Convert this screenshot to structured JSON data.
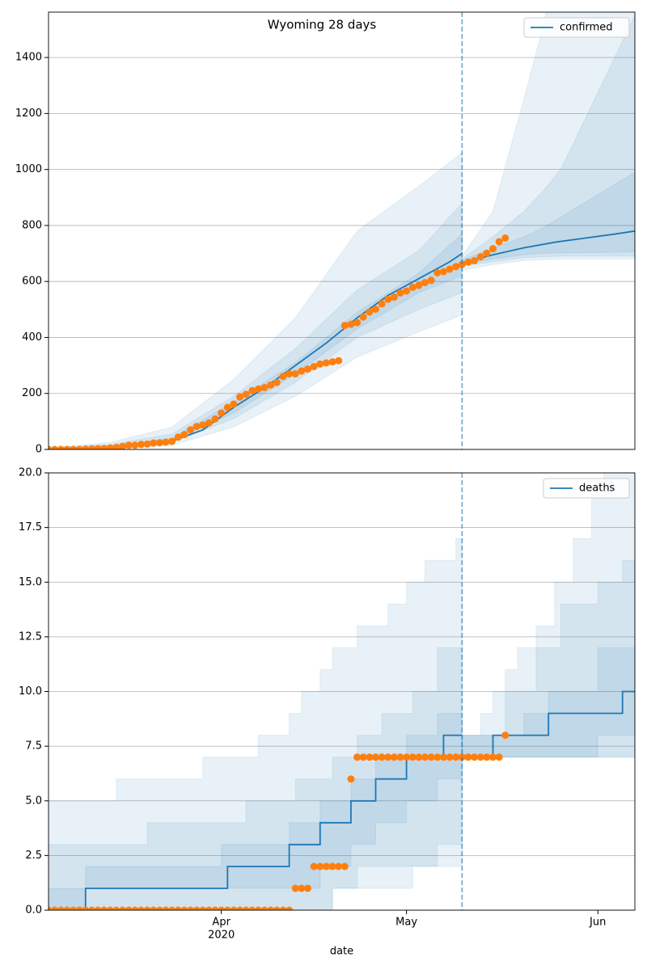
{
  "chart_data": [
    {
      "type": "line",
      "title": "Wyoming 28 days",
      "xlim": [
        "2020-03-04",
        "2020-06-07"
      ],
      "ylim": [
        0,
        1562
      ],
      "yticks": [
        0,
        200,
        400,
        600,
        800,
        1000,
        1200,
        1400
      ],
      "grid": true,
      "legend": "upper right",
      "vline": "2020-05-10",
      "band_color": "#1f77b4",
      "band_alpha": 0.1,
      "bands": [
        {
          "x": [
            "2020-03-04",
            "2020-03-14",
            "2020-03-24",
            "2020-04-03",
            "2020-04-13",
            "2020-04-23",
            "2020-05-03",
            "2020-05-10",
            null,
            "2020-05-10",
            "2020-05-15",
            "2020-05-20",
            "2020-05-23",
            "2020-05-26",
            "2020-06-07"
          ],
          "upper": [
            5,
            25,
            80,
            250,
            470,
            780,
            940,
            1060,
            null,
            690,
            850,
            1250,
            1500,
            1800,
            2200
          ],
          "lower": [
            0,
            0,
            15,
            80,
            190,
            330,
            420,
            480,
            null,
            640,
            660,
            675,
            678,
            680,
            680
          ]
        },
        {
          "x": [
            "2020-03-04",
            "2020-03-14",
            "2020-03-24",
            "2020-04-03",
            "2020-04-13",
            "2020-04-23",
            "2020-05-03",
            "2020-05-10",
            null,
            "2020-05-10",
            "2020-05-15",
            "2020-05-20",
            "2020-05-23",
            "2020-05-26",
            "2020-06-07"
          ],
          "upper": [
            3,
            18,
            55,
            190,
            360,
            570,
            710,
            880,
            null,
            680,
            760,
            850,
            920,
            1000,
            1550
          ],
          "lower": [
            0,
            2,
            25,
            110,
            240,
            400,
            500,
            560,
            null,
            655,
            670,
            685,
            688,
            690,
            690
          ]
        },
        {
          "x": [
            "2020-03-04",
            "2020-03-14",
            "2020-03-24",
            "2020-04-03",
            "2020-04-13",
            "2020-04-23",
            "2020-05-03",
            "2020-05-10",
            null,
            "2020-05-10",
            "2020-05-15",
            "2020-05-20",
            "2020-05-23",
            "2020-05-26",
            "2020-06-07"
          ],
          "upper": [
            1,
            10,
            40,
            170,
            310,
            490,
            630,
            770,
            null,
            675,
            720,
            760,
            790,
            830,
            990
          ],
          "lower": [
            0,
            3,
            30,
            130,
            270,
            430,
            560,
            620,
            null,
            660,
            680,
            695,
            700,
            702,
            705
          ]
        }
      ],
      "series": [
        {
          "name": "confirmed",
          "color": "#1f77b4",
          "x": [
            "2020-03-04",
            "2020-03-09",
            "2020-03-14",
            "2020-03-19",
            "2020-03-24",
            "2020-03-29",
            "2020-04-03",
            "2020-04-08",
            "2020-04-13",
            "2020-04-18",
            "2020-04-23",
            "2020-04-28",
            "2020-05-03",
            "2020-05-08",
            "2020-05-10",
            null,
            "2020-05-10",
            "2020-05-15",
            "2020-05-20",
            "2020-05-25",
            "2020-05-30",
            "2020-06-04",
            "2020-06-07"
          ],
          "values": [
            0,
            1,
            5,
            14,
            30,
            70,
            150,
            220,
            300,
            380,
            470,
            550,
            610,
            670,
            700,
            null,
            667,
            695,
            720,
            740,
            755,
            770,
            780
          ]
        },
        {
          "marker": "o",
          "color": "#ff7f0e",
          "x": [
            "2020-03-04",
            "2020-03-05",
            "2020-03-06",
            "2020-03-07",
            "2020-03-08",
            "2020-03-09",
            "2020-03-10",
            "2020-03-11",
            "2020-03-12",
            "2020-03-13",
            "2020-03-14",
            "2020-03-15",
            "2020-03-16",
            "2020-03-17",
            "2020-03-18",
            "2020-03-19",
            "2020-03-20",
            "2020-03-21",
            "2020-03-22",
            "2020-03-23",
            "2020-03-24",
            "2020-03-25",
            "2020-03-26",
            "2020-03-27",
            "2020-03-28",
            "2020-03-29",
            "2020-03-30",
            "2020-03-31",
            "2020-04-01",
            "2020-04-02",
            "2020-04-03",
            "2020-04-04",
            "2020-04-05",
            "2020-04-06",
            "2020-04-07",
            "2020-04-08",
            "2020-04-09",
            "2020-04-10",
            "2020-04-11",
            "2020-04-12",
            "2020-04-13",
            "2020-04-14",
            "2020-04-15",
            "2020-04-16",
            "2020-04-17",
            "2020-04-18",
            "2020-04-19",
            "2020-04-20",
            "2020-04-21",
            "2020-04-22",
            "2020-04-23",
            "2020-04-24",
            "2020-04-25",
            "2020-04-26",
            "2020-04-27",
            "2020-04-28",
            "2020-04-29",
            "2020-04-30",
            "2020-05-01",
            "2020-05-02",
            "2020-05-03",
            "2020-05-04",
            "2020-05-05",
            "2020-05-06",
            "2020-05-07",
            "2020-05-08",
            "2020-05-09",
            "2020-05-10",
            "2020-05-11",
            "2020-05-12",
            "2020-05-13",
            "2020-05-14",
            "2020-05-15",
            "2020-05-16",
            "2020-05-17"
          ],
          "values": [
            0,
            0,
            0,
            0,
            0,
            0,
            1,
            2,
            3,
            3,
            5,
            7,
            11,
            15,
            15,
            18,
            19,
            23,
            24,
            26,
            29,
            44,
            53,
            70,
            82,
            87,
            95,
            109,
            130,
            150,
            162,
            187,
            197,
            210,
            216,
            221,
            230,
            239,
            261,
            270,
            270,
            280,
            287,
            296,
            305,
            309,
            313,
            317,
            443,
            447,
            453,
            473,
            491,
            501,
            520,
            536,
            544,
            559,
            566,
            579,
            586,
            596,
            604,
            631,
            635,
            644,
            653,
            661,
            669,
            674,
            688,
            701,
            717,
            742,
            755
          ]
        }
      ]
    },
    {
      "type": "line",
      "step": true,
      "xlabel": "date",
      "xlim": [
        "2020-03-04",
        "2020-06-07"
      ],
      "ylim": [
        0,
        20
      ],
      "yticks": [
        {
          "value": 0,
          "label": "0.0"
        },
        {
          "value": 2.5,
          "label": "2.5"
        },
        {
          "value": 5,
          "label": "5.0"
        },
        {
          "value": 7.5,
          "label": "7.5"
        },
        {
          "value": 10,
          "label": "10.0"
        },
        {
          "value": 12.5,
          "label": "12.5"
        },
        {
          "value": 15,
          "label": "15.0"
        },
        {
          "value": 17.5,
          "label": "17.5"
        },
        {
          "value": 20,
          "label": "20.0"
        }
      ],
      "xticks": [
        {
          "value": "2020-04-01",
          "label": "Apr",
          "sublabel": "2020"
        },
        {
          "value": "2020-05-01",
          "label": "May"
        },
        {
          "value": "2020-06-01",
          "label": "Jun"
        }
      ],
      "grid": true,
      "legend": "upper right",
      "vline": "2020-05-10",
      "band_color": "#1f77b4",
      "band_alpha": 0.1,
      "bands": [
        {
          "x": [
            "2020-03-04",
            "2020-03-15",
            "2020-03-29",
            "2020-04-07",
            "2020-04-12",
            "2020-04-14",
            "2020-04-17",
            "2020-04-19",
            "2020-04-23",
            "2020-04-28",
            "2020-05-01",
            "2020-05-04",
            "2020-05-09",
            "2020-05-10",
            null,
            "2020-05-10",
            "2020-05-13",
            "2020-05-15",
            "2020-05-17",
            "2020-05-19",
            "2020-05-22",
            "2020-05-25",
            "2020-05-28",
            "2020-05-31",
            "2020-06-02",
            "2020-06-07"
          ],
          "upper": [
            5,
            6,
            7,
            8,
            9,
            10,
            11,
            12,
            13,
            14,
            15,
            16,
            17,
            17,
            null,
            8,
            9,
            10,
            11,
            12,
            13,
            15,
            17,
            19,
            21,
            21
          ],
          "lower": [
            0,
            0,
            0,
            0,
            0,
            0,
            0,
            1,
            2,
            2,
            2,
            2,
            2,
            2,
            null,
            7,
            7,
            7,
            7,
            7,
            7,
            7,
            7,
            7,
            7,
            7
          ]
        },
        {
          "x": [
            "2020-03-04",
            "2020-03-08",
            "2020-03-20",
            "2020-04-05",
            "2020-04-13",
            "2020-04-19",
            "2020-04-23",
            "2020-04-27",
            "2020-05-02",
            "2020-05-06",
            "2020-05-10",
            null,
            "2020-05-10",
            "2020-05-17",
            "2020-05-22",
            "2020-05-26",
            "2020-06-01",
            "2020-06-05",
            "2020-06-07"
          ],
          "upper": [
            3,
            3,
            4,
            5,
            6,
            7,
            8,
            9,
            10,
            12,
            12,
            null,
            8,
            10,
            12,
            14,
            15,
            16,
            17
          ],
          "lower": [
            0,
            0,
            0,
            0,
            0,
            1,
            1,
            1,
            2,
            3,
            4,
            null,
            7,
            7,
            7,
            7,
            7,
            7,
            7
          ]
        },
        {
          "x": [
            "2020-03-04",
            "2020-03-10",
            "2020-04-01",
            "2020-04-12",
            "2020-04-17",
            "2020-04-22",
            "2020-04-26",
            "2020-05-01",
            "2020-05-06",
            "2020-05-10",
            null,
            "2020-05-10",
            "2020-05-20",
            "2020-05-24",
            "2020-06-01",
            "2020-06-07"
          ],
          "upper": [
            1,
            2,
            3,
            4,
            5,
            6,
            7,
            8,
            9,
            9,
            null,
            8,
            9,
            10,
            12,
            12
          ],
          "lower": [
            0,
            1,
            1,
            1,
            2,
            3,
            4,
            5,
            6,
            6,
            null,
            7,
            7,
            7,
            8,
            8
          ]
        }
      ],
      "series": [
        {
          "name": "deaths",
          "color": "#1f77b4",
          "x": [
            "2020-03-04",
            "2020-03-10",
            "2020-04-02",
            "2020-04-12",
            "2020-04-17",
            "2020-04-22",
            "2020-04-26",
            "2020-05-01",
            "2020-05-07",
            "2020-05-10",
            null,
            "2020-05-10",
            "2020-05-15",
            "2020-05-24",
            "2020-06-05",
            "2020-06-07"
          ],
          "values": [
            0,
            1,
            2,
            3,
            4,
            5,
            6,
            7,
            8,
            8,
            null,
            7,
            8,
            9,
            10,
            10
          ]
        },
        {
          "marker": "o",
          "color": "#ff7f0e",
          "x": [
            "2020-03-04",
            "2020-03-05",
            "2020-03-06",
            "2020-03-07",
            "2020-03-08",
            "2020-03-09",
            "2020-03-10",
            "2020-03-11",
            "2020-03-12",
            "2020-03-13",
            "2020-03-14",
            "2020-03-15",
            "2020-03-16",
            "2020-03-17",
            "2020-03-18",
            "2020-03-19",
            "2020-03-20",
            "2020-03-21",
            "2020-03-22",
            "2020-03-23",
            "2020-03-24",
            "2020-03-25",
            "2020-03-26",
            "2020-03-27",
            "2020-03-28",
            "2020-03-29",
            "2020-03-30",
            "2020-03-31",
            "2020-04-01",
            "2020-04-02",
            "2020-04-03",
            "2020-04-04",
            "2020-04-05",
            "2020-04-06",
            "2020-04-07",
            "2020-04-08",
            "2020-04-09",
            "2020-04-10",
            "2020-04-11",
            "2020-04-12",
            "2020-04-13",
            "2020-04-14",
            "2020-04-15",
            "2020-04-16",
            "2020-04-17",
            "2020-04-18",
            "2020-04-19",
            "2020-04-20",
            "2020-04-21",
            "2020-04-22",
            "2020-04-23",
            "2020-04-24",
            "2020-04-25",
            "2020-04-26",
            "2020-04-27",
            "2020-04-28",
            "2020-04-29",
            "2020-04-30",
            "2020-05-01",
            "2020-05-02",
            "2020-05-03",
            "2020-05-04",
            "2020-05-05",
            "2020-05-06",
            "2020-05-07",
            "2020-05-08",
            "2020-05-09",
            "2020-05-10",
            "2020-05-11",
            "2020-05-12",
            "2020-05-13",
            "2020-05-14",
            "2020-05-15",
            "2020-05-16",
            "2020-05-17"
          ],
          "values": [
            0,
            0,
            0,
            0,
            0,
            0,
            0,
            0,
            0,
            0,
            0,
            0,
            0,
            0,
            0,
            0,
            0,
            0,
            0,
            0,
            0,
            0,
            0,
            0,
            0,
            0,
            0,
            0,
            0,
            0,
            0,
            0,
            0,
            0,
            0,
            0,
            0,
            0,
            0,
            0,
            1,
            1,
            1,
            2,
            2,
            2,
            2,
            2,
            2,
            6,
            7,
            7,
            7,
            7,
            7,
            7,
            7,
            7,
            7,
            7,
            7,
            7,
            7,
            7,
            7,
            7,
            7,
            7,
            7,
            7,
            7,
            7,
            7,
            7,
            8
          ]
        }
      ]
    }
  ]
}
